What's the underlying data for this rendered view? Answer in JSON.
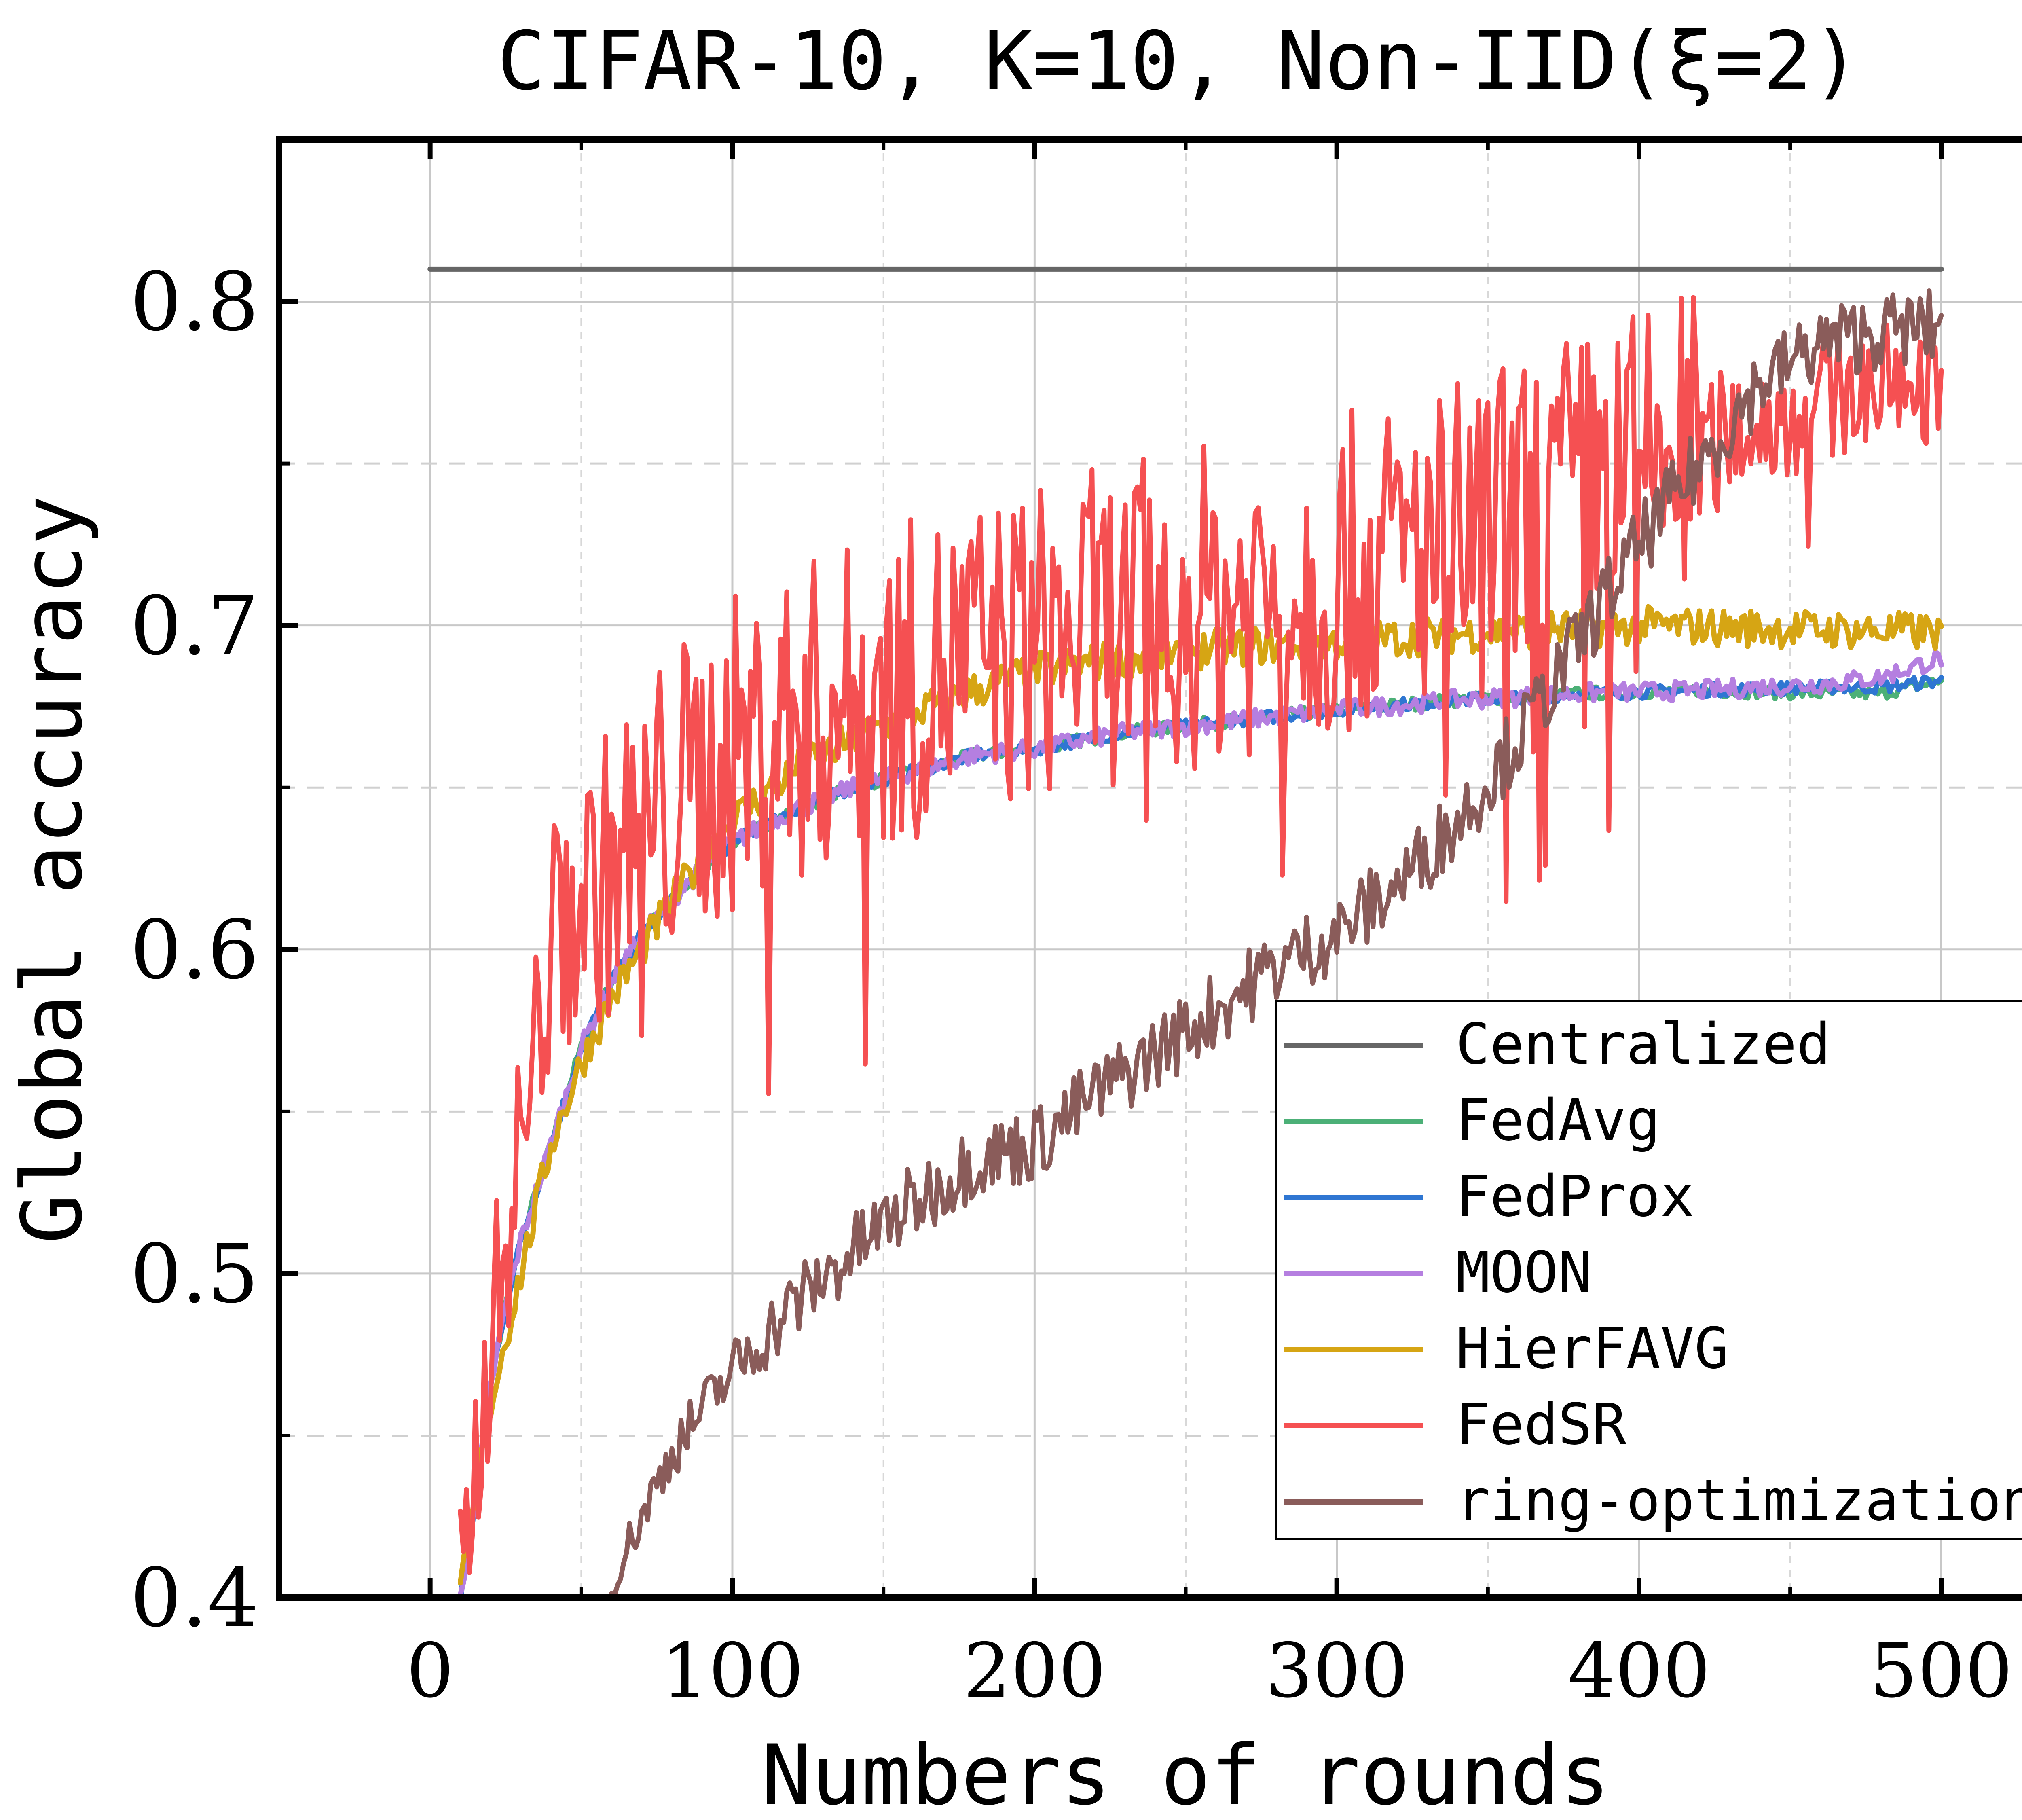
{
  "chart_data": {
    "type": "line",
    "title": "CIFAR-10, K=10, Non-IID(ξ=2)",
    "xlabel": "Numbers of rounds",
    "ylabel": "Global accuracy",
    "xlim": [
      -50,
      550
    ],
    "ylim": [
      0.4,
      0.85
    ],
    "xticks": [
      0,
      100,
      200,
      300,
      400,
      500
    ],
    "xtick_labels": [
      "0",
      "100",
      "200",
      "300",
      "400",
      "500"
    ],
    "xminor": [
      50,
      150,
      250,
      350,
      450
    ],
    "yticks": [
      0.4,
      0.5,
      0.6,
      0.7,
      0.8
    ],
    "ytick_labels": [
      "0.4",
      "0.5",
      "0.6",
      "0.7",
      "0.8"
    ],
    "yminor": [
      0.45,
      0.55,
      0.65,
      0.75
    ],
    "grid": true,
    "legend_position": "lower-right",
    "series": [
      {
        "name": "Centralized",
        "color": "#666666",
        "style": "flat",
        "x": [
          0,
          500
        ],
        "values": [
          0.81,
          0.81
        ],
        "noise": 0
      },
      {
        "name": "FedAvg",
        "color": "#4cb077",
        "style": "smooth",
        "x": [
          10,
          15,
          20,
          25,
          30,
          35,
          40,
          45,
          50,
          60,
          70,
          80,
          90,
          100,
          120,
          140,
          160,
          180,
          200,
          230,
          260,
          300,
          340,
          380,
          420,
          460,
          480,
          500
        ],
        "values": [
          0.4,
          0.43,
          0.465,
          0.49,
          0.51,
          0.525,
          0.54,
          0.555,
          0.57,
          0.59,
          0.605,
          0.615,
          0.625,
          0.633,
          0.643,
          0.65,
          0.655,
          0.66,
          0.662,
          0.667,
          0.67,
          0.674,
          0.677,
          0.679,
          0.68,
          0.679,
          0.679,
          0.683
        ],
        "noise": 0.002
      },
      {
        "name": "FedProx",
        "color": "#2f76d2",
        "style": "smooth",
        "x": [
          10,
          15,
          20,
          25,
          30,
          35,
          40,
          45,
          50,
          60,
          70,
          80,
          90,
          100,
          120,
          140,
          160,
          180,
          200,
          230,
          260,
          300,
          340,
          380,
          420,
          460,
          480,
          500
        ],
        "values": [
          0.4,
          0.43,
          0.465,
          0.49,
          0.51,
          0.525,
          0.54,
          0.555,
          0.57,
          0.59,
          0.605,
          0.615,
          0.625,
          0.633,
          0.643,
          0.65,
          0.655,
          0.66,
          0.662,
          0.667,
          0.67,
          0.674,
          0.677,
          0.679,
          0.68,
          0.681,
          0.681,
          0.683
        ],
        "noise": 0.002
      },
      {
        "name": "MOON",
        "color": "#b57fe0",
        "style": "smooth",
        "x": [
          10,
          15,
          20,
          25,
          30,
          35,
          40,
          45,
          50,
          60,
          70,
          80,
          90,
          100,
          120,
          140,
          160,
          180,
          200,
          230,
          260,
          300,
          340,
          380,
          420,
          460,
          480,
          500
        ],
        "values": [
          0.4,
          0.43,
          0.465,
          0.49,
          0.51,
          0.525,
          0.54,
          0.555,
          0.57,
          0.59,
          0.605,
          0.615,
          0.625,
          0.633,
          0.643,
          0.65,
          0.655,
          0.66,
          0.662,
          0.667,
          0.67,
          0.674,
          0.677,
          0.679,
          0.68,
          0.682,
          0.684,
          0.69
        ],
        "noise": 0.003
      },
      {
        "name": "HierFAVG",
        "color": "#d6a514",
        "style": "smooth",
        "x": [
          10,
          20,
          30,
          40,
          50,
          60,
          70,
          80,
          90,
          100,
          120,
          140,
          160,
          180,
          200,
          230,
          260,
          300,
          350,
          400,
          450,
          500
        ],
        "values": [
          0.4,
          0.46,
          0.5,
          0.54,
          0.565,
          0.585,
          0.6,
          0.615,
          0.628,
          0.64,
          0.655,
          0.665,
          0.673,
          0.68,
          0.686,
          0.69,
          0.693,
          0.695,
          0.698,
          0.7,
          0.699,
          0.698
        ],
        "noise": 0.006
      },
      {
        "name": "FedSR",
        "color": "#f55052",
        "style": "noisy",
        "x": [
          10,
          15,
          20,
          25,
          30,
          35,
          40,
          50,
          60,
          70,
          80,
          100,
          120,
          150,
          180,
          200,
          250,
          300,
          350,
          400,
          430,
          450,
          470,
          500
        ],
        "values": [
          0.4,
          0.44,
          0.48,
          0.51,
          0.54,
          0.57,
          0.6,
          0.615,
          0.625,
          0.635,
          0.645,
          0.66,
          0.67,
          0.68,
          0.69,
          0.695,
          0.705,
          0.715,
          0.73,
          0.75,
          0.76,
          0.765,
          0.773,
          0.776
        ],
        "noise": 0.05
      },
      {
        "name": "ring-optimization",
        "color": "#8a5c5a",
        "style": "noisy",
        "x": [
          60,
          80,
          100,
          120,
          150,
          180,
          200,
          220,
          250,
          280,
          300,
          320,
          340,
          360,
          380,
          400,
          420,
          440,
          460,
          480,
          500
        ],
        "values": [
          0.405,
          0.445,
          0.47,
          0.49,
          0.515,
          0.535,
          0.54,
          0.555,
          0.575,
          0.595,
          0.605,
          0.62,
          0.64,
          0.665,
          0.695,
          0.725,
          0.75,
          0.775,
          0.787,
          0.791,
          0.792
        ],
        "noise": 0.012
      }
    ]
  }
}
